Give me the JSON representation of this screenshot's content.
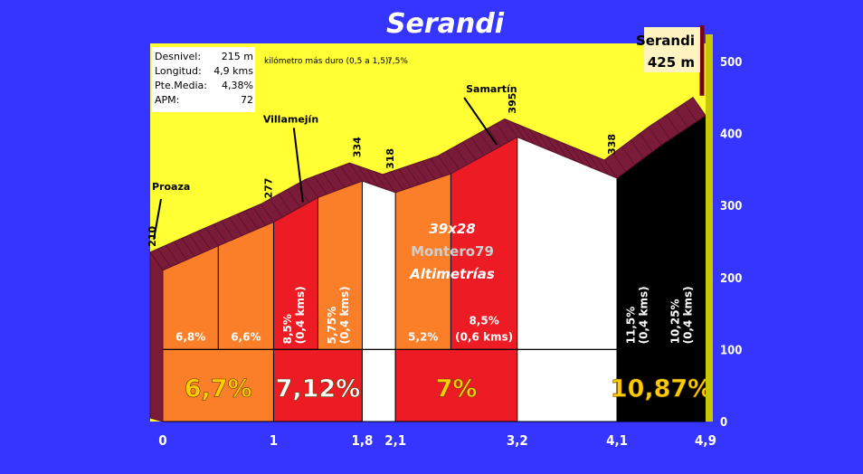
{
  "chart_data": {
    "type": "area",
    "title": "Serandi",
    "summary_box": {
      "rows": [
        {
          "label": "Desnivel:",
          "value": "215 m"
        },
        {
          "label": "Longitud:",
          "value": "4,9 kms"
        },
        {
          "label": "Pte.Media:",
          "value": "4,38%"
        },
        {
          "label": "APM:",
          "value": "72"
        }
      ]
    },
    "hardest_km_label": "kilómetro más duro (0,5 a 1,5):",
    "hardest_km_value": "7,5%",
    "summit": {
      "name": "Serandi",
      "altitude_label": "425 m"
    },
    "watermark": [
      "39x28",
      "Montero79",
      "Altimetrías"
    ],
    "ylim": [
      0,
      500
    ],
    "y_ticks": [
      {
        "value": 0,
        "label": "0"
      },
      {
        "value": 100,
        "label": "100"
      },
      {
        "value": 200,
        "label": "200"
      },
      {
        "value": 300,
        "label": "300"
      },
      {
        "value": 400,
        "label": "400"
      },
      {
        "value": 500,
        "label": "500"
      }
    ],
    "xlim": [
      0,
      4.9
    ],
    "x_ticks": [
      {
        "value": 0,
        "label": "0"
      },
      {
        "value": 1,
        "label": "1"
      },
      {
        "value": 1.8,
        "label": "1,8"
      },
      {
        "value": 2.1,
        "label": "2,1"
      },
      {
        "value": 3.2,
        "label": "3,2"
      },
      {
        "value": 4.1,
        "label": "4,1"
      },
      {
        "value": 4.9,
        "label": "4,9"
      }
    ],
    "profile": [
      {
        "km": 0,
        "alt": 210
      },
      {
        "km": 0.5,
        "alt": 244
      },
      {
        "km": 1.0,
        "alt": 277
      },
      {
        "km": 1.4,
        "alt": 311
      },
      {
        "km": 1.8,
        "alt": 334
      },
      {
        "km": 2.1,
        "alt": 318
      },
      {
        "km": 2.6,
        "alt": 344
      },
      {
        "km": 3.2,
        "alt": 395
      },
      {
        "km": 4.1,
        "alt": 338
      },
      {
        "km": 4.5,
        "alt": 384
      },
      {
        "km": 4.9,
        "alt": 425
      }
    ],
    "altitude_labels": [
      {
        "km": 0,
        "alt": 210,
        "label": "210"
      },
      {
        "km": 1.0,
        "alt": 277,
        "label": "277"
      },
      {
        "km": 1.8,
        "alt": 334,
        "label": "334"
      },
      {
        "km": 2.1,
        "alt": 318,
        "label": "318"
      },
      {
        "km": 3.2,
        "alt": 395,
        "label": "395"
      },
      {
        "km": 4.1,
        "alt": 338,
        "label": "338"
      }
    ],
    "places": [
      {
        "name": "Proaza",
        "km": 0
      },
      {
        "name": "Villamejín",
        "km": 1.15
      },
      {
        "name": "Samartín",
        "km": 2.9
      }
    ],
    "segments": [
      {
        "from": 0,
        "to": 0.5,
        "color": "#fb7f28",
        "grade": "6,8%",
        "vertical": false
      },
      {
        "from": 0.5,
        "to": 1.0,
        "color": "#fb7f28",
        "grade": "6,6%",
        "vertical": false
      },
      {
        "from": 1.0,
        "to": 1.4,
        "color": "#ed1c24",
        "grade": "8,5%",
        "dist": "(0,4 kms)",
        "vertical": true
      },
      {
        "from": 1.4,
        "to": 1.8,
        "color": "#fb7f28",
        "grade": "5,75%",
        "dist": "(0,4 kms)",
        "vertical": true
      },
      {
        "from": 1.8,
        "to": 2.1,
        "color": "#ffffff",
        "grade": "",
        "vertical": false
      },
      {
        "from": 2.1,
        "to": 2.6,
        "color": "#fb7f28",
        "grade": "5,2%",
        "vertical": false
      },
      {
        "from": 2.6,
        "to": 3.2,
        "color": "#ed1c24",
        "grade": "8,5%",
        "dist": "(0,6 kms)",
        "vertical": false
      },
      {
        "from": 3.2,
        "to": 4.1,
        "color": "#ffffff",
        "grade": "",
        "vertical": false
      },
      {
        "from": 4.1,
        "to": 4.5,
        "color": "#000000",
        "grade": "11,5%",
        "dist": "(0,4 kms)",
        "vertical": true
      },
      {
        "from": 4.5,
        "to": 4.9,
        "color": "#000000",
        "grade": "10,25%",
        "dist": "(0,4 kms)",
        "vertical": true
      }
    ],
    "km_groups": [
      {
        "from": 0,
        "to": 1.0,
        "color": "#fb7f28",
        "label": "6,7%",
        "text_color": "#ffcc00"
      },
      {
        "from": 1.0,
        "to": 1.8,
        "color": "#ed1c24",
        "label": "7,12%",
        "text_color": "#ffffff"
      },
      {
        "from": 1.8,
        "to": 2.1,
        "color": "#ffffff",
        "label": "",
        "text_color": "#ffffff"
      },
      {
        "from": 2.1,
        "to": 3.2,
        "color": "#ed1c24",
        "label": "7%",
        "text_color": "#ffcc00"
      },
      {
        "from": 3.2,
        "to": 4.1,
        "color": "#ffffff",
        "label": "",
        "text_color": "#ffffff"
      },
      {
        "from": 4.1,
        "to": 4.9,
        "color": "#000000",
        "label": "10,87%",
        "text_color": "#ffcc00"
      }
    ],
    "colors": {
      "background": "#3535ff",
      "sky": "#ffff33",
      "road": "#7a1b3a",
      "road_dark": "#5a1028"
    }
  }
}
